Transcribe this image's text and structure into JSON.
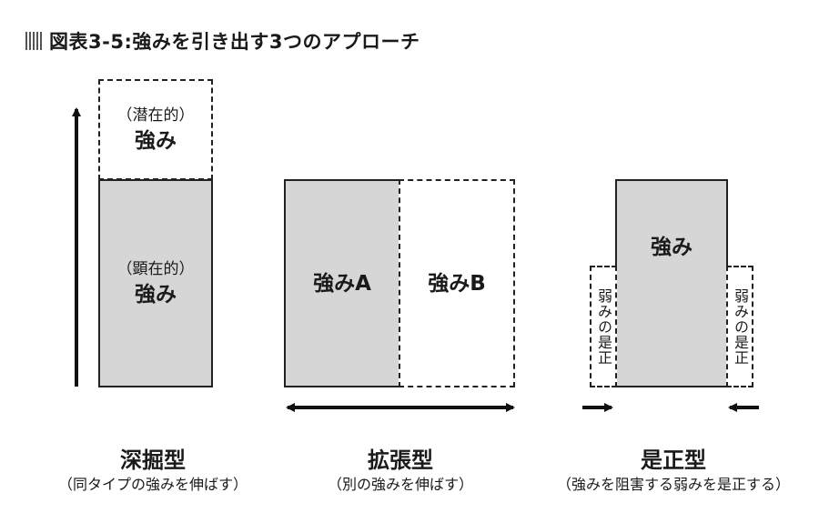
{
  "title": "図表3-5:強みを引き出す3つのアプローチ",
  "deep": {
    "latent_sub": "（潜在的）",
    "latent_main": "強み",
    "manifest_sub": "（顕在的）",
    "manifest_main": "強み",
    "name": "深掘型",
    "desc": "（同タイプの強みを伸ばす）"
  },
  "expand": {
    "a": "強みA",
    "b": "強みB",
    "name": "拡張型",
    "desc": "（別の強みを伸ばす）"
  },
  "correct": {
    "main": "強み",
    "left_side": "弱みの是正",
    "right_side": "弱みの是正",
    "name": "是正型",
    "desc": "（強みを阻害する弱みを是正する）"
  }
}
